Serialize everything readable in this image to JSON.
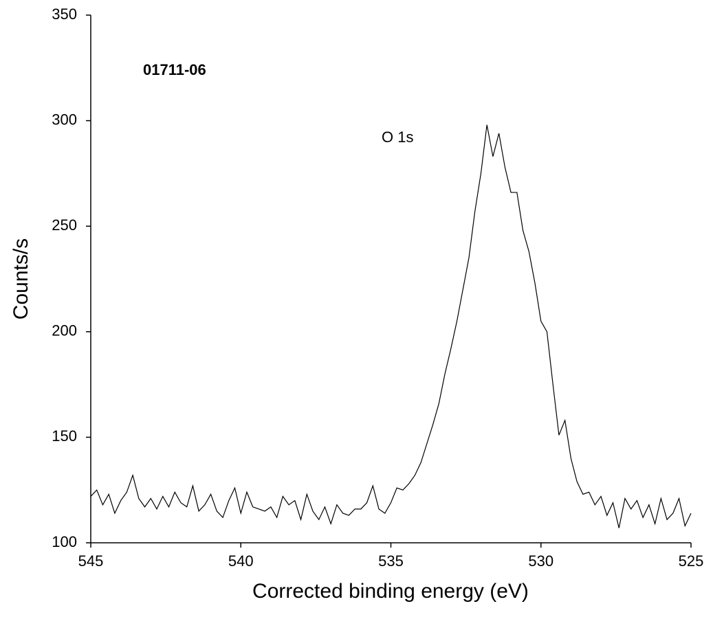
{
  "chart_data": {
    "type": "line",
    "xlabel": "Corrected binding energy (eV)",
    "ylabel": "Counts/s",
    "annotations": [
      "01711-06",
      "O 1s"
    ],
    "xlim": [
      545,
      525
    ],
    "xticks": [
      545,
      540,
      535,
      530,
      525
    ],
    "ylim": [
      100,
      350
    ],
    "yticks": [
      100,
      150,
      200,
      250,
      300,
      350
    ],
    "color": "#000000",
    "x": [
      545.0,
      544.8,
      544.6,
      544.4,
      544.2,
      544.0,
      543.8,
      543.6,
      543.4,
      543.2,
      543.0,
      542.8,
      542.6,
      542.4,
      542.2,
      542.0,
      541.8,
      541.6,
      541.4,
      541.2,
      541.0,
      540.8,
      540.6,
      540.4,
      540.2,
      540.0,
      539.8,
      539.6,
      539.4,
      539.2,
      539.0,
      538.8,
      538.6,
      538.4,
      538.2,
      538.0,
      537.8,
      537.6,
      537.4,
      537.2,
      537.0,
      536.8,
      536.6,
      536.4,
      536.2,
      536.0,
      535.8,
      535.6,
      535.4,
      535.2,
      535.0,
      534.8,
      534.6,
      534.4,
      534.2,
      534.0,
      533.8,
      533.6,
      533.4,
      533.2,
      533.0,
      532.8,
      532.6,
      532.4,
      532.2,
      532.0,
      531.8,
      531.6,
      531.4,
      531.2,
      531.0,
      530.8,
      530.6,
      530.4,
      530.2,
      530.0,
      529.8,
      529.6,
      529.4,
      529.2,
      529.0,
      528.8,
      528.6,
      528.4,
      528.2,
      528.0,
      527.8,
      527.6,
      527.4,
      527.2,
      527.0,
      526.8,
      526.6,
      526.4,
      526.2,
      526.0,
      525.8,
      525.6,
      525.4,
      525.2,
      525.0
    ],
    "values": [
      122,
      125,
      118,
      123,
      114,
      120,
      124,
      132,
      121,
      117,
      121,
      116,
      122,
      117,
      124,
      119,
      117,
      127,
      115,
      118,
      123,
      115,
      112,
      120,
      126,
      114,
      124,
      117,
      116,
      115,
      117,
      112,
      122,
      118,
      120,
      111,
      123,
      115,
      111,
      117,
      109,
      118,
      114,
      113,
      116,
      116,
      119,
      127,
      116,
      114,
      119,
      126,
      125,
      128,
      132,
      138,
      147,
      156,
      166,
      180,
      192,
      205,
      220,
      235,
      257,
      275,
      298,
      283,
      294,
      278,
      266,
      266,
      248,
      238,
      223,
      205,
      200,
      175,
      151,
      158,
      140,
      129,
      123,
      124,
      118,
      122,
      113,
      119,
      107,
      121,
      116,
      120,
      112,
      118,
      109,
      121,
      111,
      114,
      121,
      108,
      114
    ]
  }
}
